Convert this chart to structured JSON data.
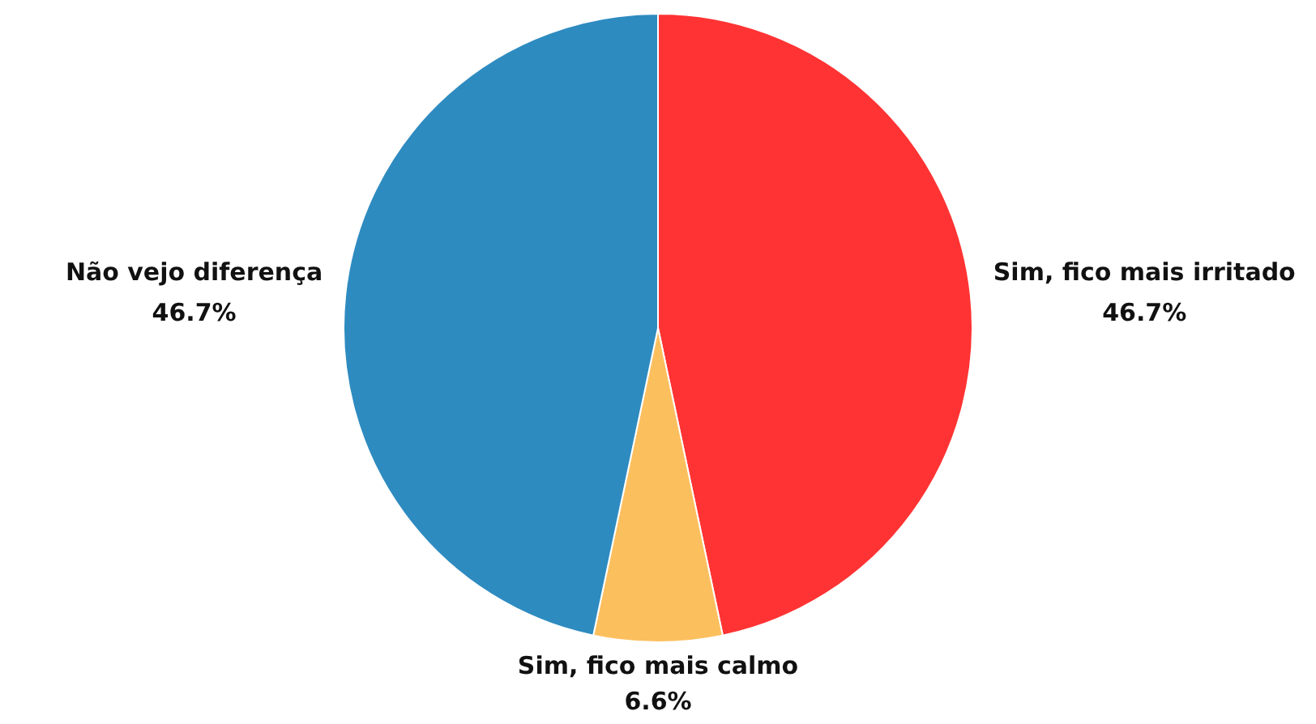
{
  "chart_data": {
    "type": "pie",
    "categories": [
      "Sim, fico mais irritado",
      "Sim, fico mais calmo",
      "Não vejo diferença"
    ],
    "values": [
      46.7,
      6.6,
      46.7
    ],
    "colors": [
      "#ff3333",
      "#fcbf5e",
      "#2e8bc0"
    ],
    "value_labels": [
      "46.7%",
      "6.6%",
      "46.7%"
    ],
    "legend": false
  }
}
